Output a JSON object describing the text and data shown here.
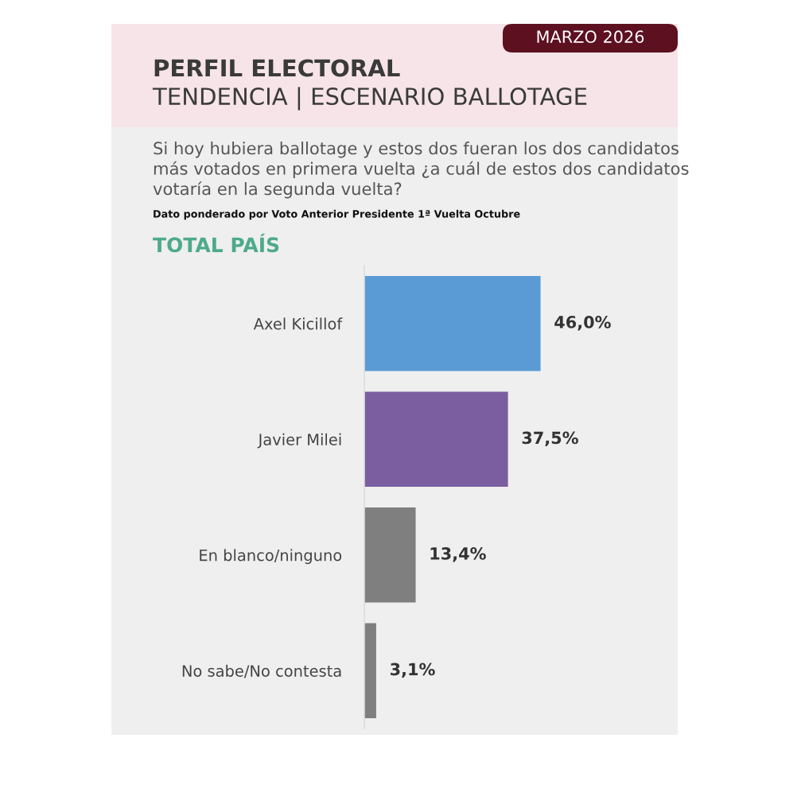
{
  "chart_data": {
    "type": "bar",
    "orientation": "horizontal",
    "title": "PERFIL ELECTORAL",
    "subtitle": "TENDENCIA | ESCENARIO BALLOTAGE",
    "annotations": [
      "MARZO 2026",
      "Si hoy hubiera ballotage y estos dos fueran los dos candidatos más votados en primera vuelta ¿a cuál de estos dos candidatos votaría en la segunda vuelta?",
      "Dato ponderado por Voto Anterior Presidente 1ª Vuelta Octubre",
      "TOTAL PAÍS"
    ],
    "categories": [
      "Axel Kicillof",
      "Javier Milei",
      "En blanco/ninguno",
      "No sabe/No contesta"
    ],
    "values": [
      46.0,
      37.5,
      13.4,
      3.1
    ],
    "value_labels": [
      "46,0%",
      "37,5%",
      "13,4%",
      "3,1%"
    ],
    "colors": [
      "#5b9bd5",
      "#7b5ea0",
      "#7f7f7f",
      "#7f7f7f"
    ]
  }
}
